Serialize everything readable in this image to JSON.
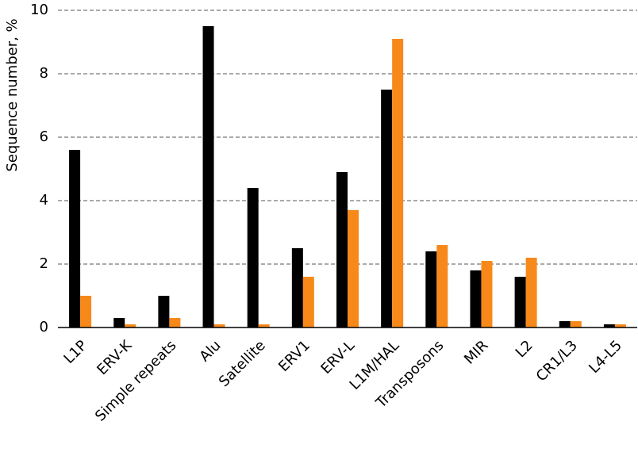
{
  "chart_data": {
    "type": "bar",
    "y_label": "Sequence number, %",
    "categories": [
      "L1P",
      "ERV-K",
      "Simple repeats",
      "Alu",
      "Satellite",
      "ERV1",
      "ERV-L",
      "L1M/HAL",
      "Transposons",
      "MIR",
      "L2",
      "CR1/L3",
      "L4-L5"
    ],
    "series": [
      {
        "color": "#000000",
        "values": [
          5.6,
          0.3,
          1.0,
          9.5,
          4.4,
          2.5,
          4.9,
          7.5,
          2.4,
          1.8,
          1.6,
          0.2,
          0.1
        ]
      },
      {
        "color": "#f7891b",
        "values": [
          1.0,
          0.1,
          0.3,
          0.1,
          0.1,
          1.6,
          3.7,
          9.1,
          2.6,
          2.1,
          2.2,
          0.2,
          0.1
        ]
      }
    ],
    "ylim": [
      0,
      10
    ],
    "yticks": [
      0,
      2,
      4,
      6,
      8,
      10
    ],
    "grid": true
  }
}
